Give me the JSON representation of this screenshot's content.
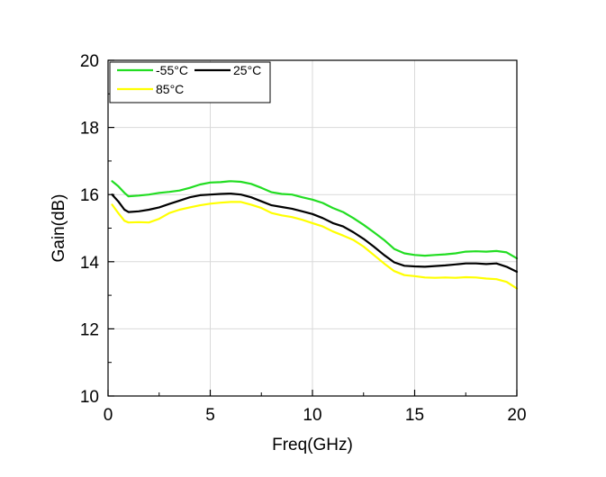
{
  "chart_data": {
    "type": "line",
    "title": "",
    "xlabel": "Freq(GHz)",
    "ylabel": "Gain(dB)",
    "xlim": [
      0,
      20
    ],
    "ylim": [
      10,
      20
    ],
    "xticks": [
      "0",
      "5",
      "10",
      "15",
      "20"
    ],
    "yticks": [
      "10",
      "12",
      "14",
      "16",
      "18",
      "20"
    ],
    "grid": true,
    "legend_position": "top-left",
    "series": [
      {
        "name": "-55°C",
        "color": "#22dd22",
        "x": [
          0.2,
          0.5,
          0.8,
          1.0,
          1.5,
          2.0,
          2.5,
          3.0,
          3.5,
          4.0,
          4.5,
          5.0,
          5.5,
          6.0,
          6.5,
          7.0,
          7.5,
          8.0,
          8.5,
          9.0,
          9.5,
          10.0,
          10.5,
          11.0,
          11.5,
          12.0,
          12.5,
          13.0,
          13.5,
          14.0,
          14.5,
          15.0,
          15.5,
          16.0,
          16.5,
          17.0,
          17.5,
          18.0,
          18.5,
          19.0,
          19.5,
          20.0
        ],
        "y": [
          16.4,
          16.25,
          16.05,
          15.95,
          15.97,
          16.0,
          16.05,
          16.08,
          16.12,
          16.2,
          16.3,
          16.36,
          16.37,
          16.4,
          16.38,
          16.32,
          16.2,
          16.07,
          16.02,
          16.0,
          15.92,
          15.85,
          15.75,
          15.6,
          15.48,
          15.3,
          15.1,
          14.88,
          14.65,
          14.38,
          14.25,
          14.2,
          14.18,
          14.2,
          14.22,
          14.25,
          14.3,
          14.31,
          14.3,
          14.32,
          14.28,
          14.1
        ]
      },
      {
        "name": "25°C",
        "color": "#000000",
        "x": [
          0.2,
          0.5,
          0.8,
          1.0,
          1.5,
          2.0,
          2.5,
          3.0,
          3.5,
          4.0,
          4.5,
          5.0,
          5.5,
          6.0,
          6.5,
          7.0,
          7.5,
          8.0,
          8.5,
          9.0,
          9.5,
          10.0,
          10.5,
          11.0,
          11.5,
          12.0,
          12.5,
          13.0,
          13.5,
          14.0,
          14.5,
          15.0,
          15.5,
          16.0,
          16.5,
          17.0,
          17.5,
          18.0,
          18.5,
          19.0,
          19.5,
          20.0
        ],
        "y": [
          16.0,
          15.8,
          15.55,
          15.48,
          15.5,
          15.55,
          15.62,
          15.72,
          15.82,
          15.92,
          15.98,
          16.0,
          16.02,
          16.03,
          16.0,
          15.92,
          15.8,
          15.68,
          15.63,
          15.58,
          15.5,
          15.42,
          15.3,
          15.15,
          15.05,
          14.88,
          14.68,
          14.45,
          14.2,
          13.98,
          13.88,
          13.86,
          13.85,
          13.87,
          13.89,
          13.92,
          13.95,
          13.95,
          13.93,
          13.95,
          13.85,
          13.7
        ]
      },
      {
        "name": "85°C",
        "color": "#ffff00",
        "x": [
          0.2,
          0.5,
          0.8,
          1.0,
          1.5,
          2.0,
          2.5,
          3.0,
          3.5,
          4.0,
          4.5,
          5.0,
          5.5,
          6.0,
          6.5,
          7.0,
          7.5,
          8.0,
          8.5,
          9.0,
          9.5,
          10.0,
          10.5,
          11.0,
          11.5,
          12.0,
          12.5,
          13.0,
          13.5,
          14.0,
          14.5,
          15.0,
          15.5,
          16.0,
          16.5,
          17.0,
          17.5,
          18.0,
          18.5,
          19.0,
          19.5,
          20.0
        ],
        "y": [
          15.7,
          15.45,
          15.22,
          15.17,
          15.18,
          15.17,
          15.28,
          15.45,
          15.55,
          15.62,
          15.68,
          15.73,
          15.76,
          15.78,
          15.78,
          15.7,
          15.6,
          15.45,
          15.38,
          15.33,
          15.25,
          15.15,
          15.05,
          14.9,
          14.78,
          14.65,
          14.45,
          14.2,
          13.95,
          13.72,
          13.6,
          13.57,
          13.53,
          13.52,
          13.53,
          13.52,
          13.54,
          13.53,
          13.5,
          13.48,
          13.4,
          13.2
        ]
      }
    ]
  }
}
